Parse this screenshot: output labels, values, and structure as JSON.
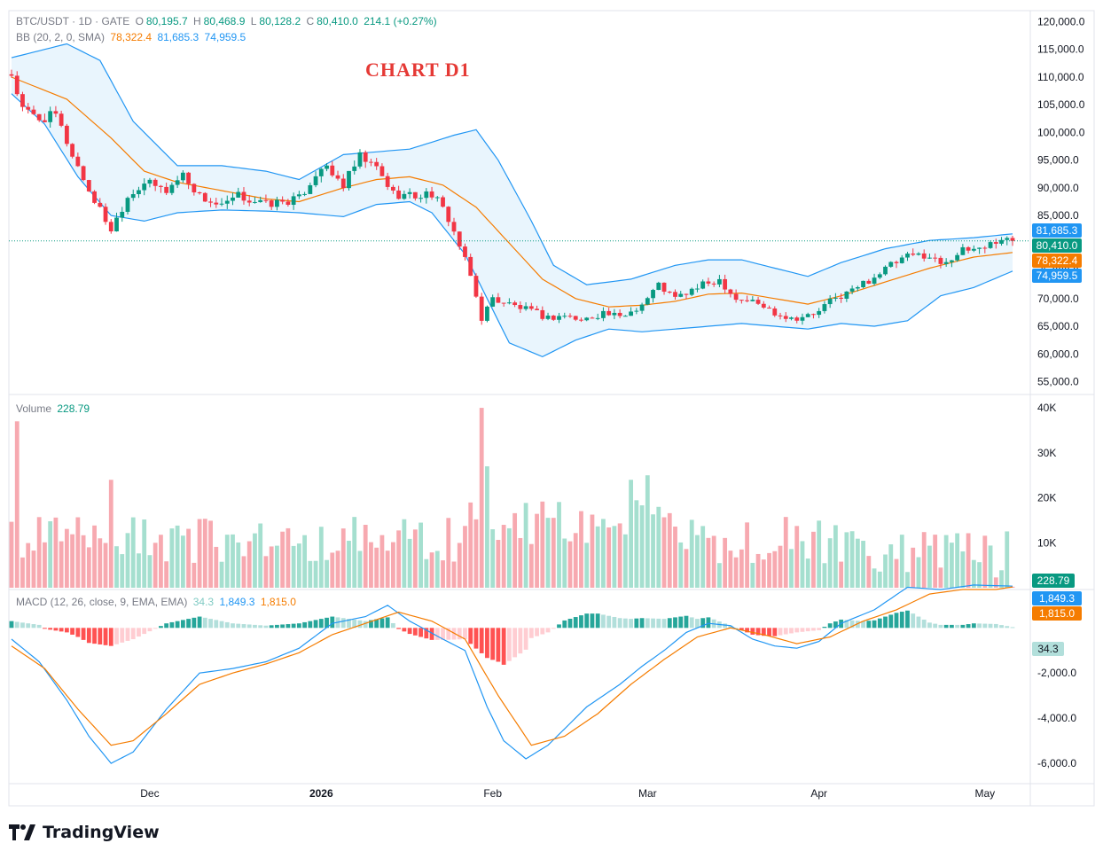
{
  "header": {
    "symbol": "BTC/USDT · 1D · GATE",
    "o_label": "O",
    "o_value": "80,195.7",
    "h_label": "H",
    "h_value": "80,468.9",
    "l_label": "L",
    "l_value": "80,128.2",
    "c_label": "C",
    "c_value": "80,410.0",
    "change": "214.1 (+0.27%)"
  },
  "bb_legend": {
    "label": "BB (20, 2, 0, SMA)",
    "basis": "78,322.4",
    "upper": "81,685.3",
    "lower": "74,959.5"
  },
  "annotation": "CHART D1",
  "volume_legend": {
    "label": "Volume",
    "value": "228.79"
  },
  "macd_legend": {
    "label": "MACD (12, 26, close, 9, EMA, EMA)",
    "hist": "34.3",
    "macd": "1,849.3",
    "signal": "1,815.0"
  },
  "footer": {
    "brand": "TradingView"
  },
  "colors": {
    "up": "#089981",
    "down": "#f23645",
    "upper_band": "#2196f3",
    "basis": "#f57c00",
    "fill": "#e3f2fd",
    "macd": "#2196f3",
    "signal": "#f57c00"
  },
  "chart_data": [
    {
      "type": "candlestick",
      "panel": "price",
      "ylim": [
        53000,
        122000
      ],
      "y_ticks": [
        "120,000.0",
        "115,000.0",
        "110,000.0",
        "105,000.0",
        "100,000.0",
        "95,000.0",
        "90,000.0",
        "85,000.0",
        "80,000.0",
        "75,000.0",
        "70,000.0",
        "65,000.0",
        "60,000.0",
        "55,000.0"
      ],
      "y_tick_values": [
        120000,
        115000,
        110000,
        105000,
        100000,
        95000,
        90000,
        85000,
        80000,
        75000,
        70000,
        65000,
        60000,
        55000
      ],
      "x_ticks": [
        "Dec",
        "2026",
        "Feb",
        "Mar",
        "Apr",
        "May"
      ],
      "x_tick_days": [
        25,
        56,
        87,
        115,
        146,
        176
      ],
      "close_anchors_by_day": [
        [
          0,
          110500
        ],
        [
          2,
          104000
        ],
        [
          5,
          102500
        ],
        [
          8,
          103000
        ],
        [
          11,
          96000
        ],
        [
          14,
          89500
        ],
        [
          18,
          82500
        ],
        [
          21,
          88500
        ],
        [
          24,
          91000
        ],
        [
          28,
          89500
        ],
        [
          31,
          92500
        ],
        [
          34,
          88500
        ],
        [
          38,
          86500
        ],
        [
          41,
          88500
        ],
        [
          46,
          87000
        ],
        [
          52,
          88000
        ],
        [
          56,
          94000
        ],
        [
          60,
          90500
        ],
        [
          63,
          95500
        ],
        [
          66,
          93500
        ],
        [
          69,
          89000
        ],
        [
          73,
          88500
        ],
        [
          76,
          89000
        ],
        [
          79,
          84500
        ],
        [
          81,
          79500
        ],
        [
          83,
          74000
        ],
        [
          85,
          66500
        ],
        [
          87,
          70000
        ],
        [
          90,
          69000
        ],
        [
          93,
          68000
        ],
        [
          97,
          66500
        ],
        [
          100,
          67000
        ],
        [
          103,
          66000
        ],
        [
          107,
          67500
        ],
        [
          110,
          66500
        ],
        [
          114,
          69000
        ],
        [
          117,
          72500
        ],
        [
          120,
          70000
        ],
        [
          124,
          72000
        ],
        [
          128,
          73500
        ],
        [
          131,
          70000
        ],
        [
          134,
          69500
        ],
        [
          138,
          67500
        ],
        [
          141,
          66500
        ],
        [
          145,
          67000
        ],
        [
          148,
          69500
        ],
        [
          152,
          71500
        ],
        [
          156,
          74000
        ],
        [
          159,
          76000
        ],
        [
          162,
          77500
        ],
        [
          165,
          78000
        ],
        [
          168,
          76500
        ],
        [
          172,
          78500
        ],
        [
          176,
          79500
        ],
        [
          179,
          80800
        ],
        [
          181,
          80410
        ]
      ],
      "bb_upper_by_day": [
        [
          0,
          113500
        ],
        [
          10,
          116000
        ],
        [
          16,
          113000
        ],
        [
          22,
          102000
        ],
        [
          30,
          94000
        ],
        [
          38,
          94000
        ],
        [
          46,
          93000
        ],
        [
          52,
          91500
        ],
        [
          60,
          96000
        ],
        [
          66,
          96500
        ],
        [
          72,
          97000
        ],
        [
          80,
          99500
        ],
        [
          84,
          100500
        ],
        [
          88,
          95000
        ],
        [
          94,
          84000
        ],
        [
          98,
          76000
        ],
        [
          104,
          72500
        ],
        [
          112,
          73500
        ],
        [
          120,
          76000
        ],
        [
          126,
          77000
        ],
        [
          132,
          77000
        ],
        [
          138,
          75500
        ],
        [
          144,
          74000
        ],
        [
          150,
          76500
        ],
        [
          158,
          79000
        ],
        [
          166,
          80500
        ],
        [
          174,
          81000
        ],
        [
          181,
          81685
        ]
      ],
      "bb_basis_by_day": [
        [
          0,
          110000
        ],
        [
          10,
          106000
        ],
        [
          18,
          99000
        ],
        [
          24,
          93000
        ],
        [
          30,
          91000
        ],
        [
          38,
          89500
        ],
        [
          46,
          88000
        ],
        [
          52,
          87500
        ],
        [
          60,
          90000
        ],
        [
          66,
          91500
        ],
        [
          72,
          92000
        ],
        [
          78,
          90500
        ],
        [
          84,
          86500
        ],
        [
          90,
          80000
        ],
        [
          96,
          73500
        ],
        [
          102,
          70000
        ],
        [
          108,
          68500
        ],
        [
          114,
          68800
        ],
        [
          120,
          69500
        ],
        [
          126,
          70800
        ],
        [
          132,
          71000
        ],
        [
          138,
          70000
        ],
        [
          144,
          69000
        ],
        [
          150,
          70500
        ],
        [
          158,
          73000
        ],
        [
          166,
          75500
        ],
        [
          174,
          77500
        ],
        [
          181,
          78322
        ]
      ],
      "bb_lower_by_day": [
        [
          0,
          107000
        ],
        [
          6,
          101500
        ],
        [
          12,
          92000
        ],
        [
          18,
          85000
        ],
        [
          24,
          84000
        ],
        [
          30,
          85500
        ],
        [
          38,
          86000
        ],
        [
          46,
          85800
        ],
        [
          52,
          85500
        ],
        [
          60,
          84800
        ],
        [
          66,
          87000
        ],
        [
          72,
          87500
        ],
        [
          76,
          85500
        ],
        [
          82,
          78000
        ],
        [
          86,
          70000
        ],
        [
          90,
          62000
        ],
        [
          96,
          59500
        ],
        [
          102,
          62500
        ],
        [
          108,
          64500
        ],
        [
          114,
          64000
        ],
        [
          120,
          64500
        ],
        [
          126,
          65000
        ],
        [
          132,
          65500
        ],
        [
          138,
          65000
        ],
        [
          144,
          64500
        ],
        [
          150,
          65500
        ],
        [
          156,
          65000
        ],
        [
          162,
          66000
        ],
        [
          168,
          70500
        ],
        [
          174,
          72000
        ],
        [
          181,
          74960
        ]
      ],
      "last_close": 80410,
      "last_day": 181
    },
    {
      "type": "bar",
      "panel": "volume",
      "ylim": [
        0,
        41000
      ],
      "y_ticks": [
        "40K",
        "30K",
        "20K",
        "10K"
      ],
      "y_tick_values": [
        40000,
        30000,
        20000,
        10000
      ],
      "spikes_by_day": [
        [
          1,
          37000
        ],
        [
          18,
          24000
        ],
        [
          85,
          40000
        ],
        [
          86,
          27000
        ],
        [
          115,
          25000
        ],
        [
          112,
          24000
        ]
      ],
      "last_value": 228.79
    },
    {
      "type": "macd",
      "panel": "macd",
      "ylim": [
        -6900,
        1700
      ],
      "y_ticks": [
        "-2,000.0",
        "-4,000.0",
        "-6,000.0"
      ],
      "y_tick_values": [
        -2000,
        -4000,
        -6000
      ],
      "macd_by_day": [
        [
          0,
          -500
        ],
        [
          5,
          -1500
        ],
        [
          10,
          -3200
        ],
        [
          14,
          -4800
        ],
        [
          18,
          -6000
        ],
        [
          22,
          -5500
        ],
        [
          28,
          -3600
        ],
        [
          34,
          -2000
        ],
        [
          40,
          -1800
        ],
        [
          46,
          -1500
        ],
        [
          52,
          -900
        ],
        [
          58,
          200
        ],
        [
          64,
          500
        ],
        [
          68,
          1000
        ],
        [
          72,
          300
        ],
        [
          78,
          -500
        ],
        [
          82,
          -1000
        ],
        [
          86,
          -3500
        ],
        [
          89,
          -5000
        ],
        [
          93,
          -5800
        ],
        [
          97,
          -5200
        ],
        [
          104,
          -3500
        ],
        [
          110,
          -2500
        ],
        [
          114,
          -1700
        ],
        [
          118,
          -1000
        ],
        [
          122,
          -200
        ],
        [
          126,
          200
        ],
        [
          130,
          100
        ],
        [
          134,
          -500
        ],
        [
          138,
          -800
        ],
        [
          142,
          -900
        ],
        [
          146,
          -600
        ],
        [
          150,
          200
        ],
        [
          156,
          800
        ],
        [
          162,
          1800
        ],
        [
          168,
          1700
        ],
        [
          174,
          1900
        ],
        [
          181,
          1849
        ]
      ],
      "signal_by_day": [
        [
          0,
          -800
        ],
        [
          6,
          -1800
        ],
        [
          12,
          -3600
        ],
        [
          18,
          -5200
        ],
        [
          22,
          -5000
        ],
        [
          28,
          -3800
        ],
        [
          34,
          -2500
        ],
        [
          40,
          -2000
        ],
        [
          46,
          -1600
        ],
        [
          52,
          -1100
        ],
        [
          58,
          -300
        ],
        [
          64,
          200
        ],
        [
          70,
          700
        ],
        [
          76,
          300
        ],
        [
          82,
          -500
        ],
        [
          88,
          -3000
        ],
        [
          94,
          -5200
        ],
        [
          100,
          -4800
        ],
        [
          106,
          -3800
        ],
        [
          112,
          -2500
        ],
        [
          118,
          -1400
        ],
        [
          124,
          -400
        ],
        [
          130,
          0
        ],
        [
          136,
          -300
        ],
        [
          142,
          -700
        ],
        [
          148,
          -400
        ],
        [
          154,
          300
        ],
        [
          160,
          800
        ],
        [
          166,
          1500
        ],
        [
          172,
          1700
        ],
        [
          178,
          1700
        ],
        [
          181,
          1815
        ]
      ]
    }
  ]
}
